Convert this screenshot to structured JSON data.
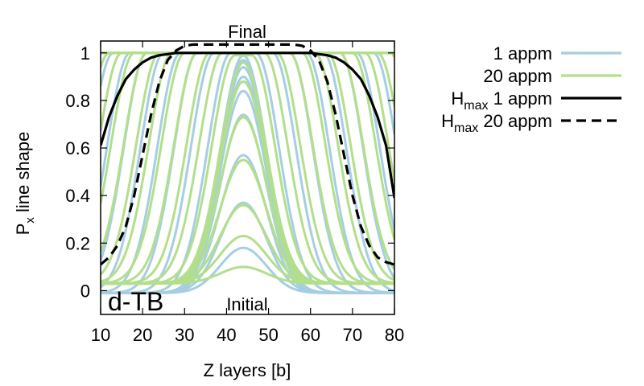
{
  "chart_data": {
    "type": "line",
    "xlabel": "Z layers [b]",
    "ylabel_main": "P",
    "ylabel_sub": "x",
    "ylabel_rest": " line shape",
    "xlim": [
      10,
      80
    ],
    "ylim": [
      -0.1,
      1.05
    ],
    "xticks": [
      10,
      20,
      30,
      40,
      50,
      60,
      70,
      80
    ],
    "yticks": [
      0,
      0.2,
      0.4,
      0.6,
      0.8,
      1
    ],
    "grid": false,
    "legend_position": "outside-right",
    "annotations": {
      "top": "Final",
      "bottom": "Initial",
      "corner": "d-TB"
    },
    "center": 44,
    "legend": [
      {
        "key": "blue",
        "text": "1 appm",
        "sub": "",
        "color": "#a6cee3",
        "dash": ""
      },
      {
        "key": "green",
        "text": "20 appm",
        "sub": "",
        "color": "#b2df8a",
        "dash": ""
      },
      {
        "key": "hmax1",
        "text": " 1 appm",
        "main": "H",
        "sub": "max",
        "color": "#000000",
        "dash": ""
      },
      {
        "key": "hmax20",
        "text": " 20 appm",
        "main": "H",
        "sub": "max",
        "color": "#000000",
        "dash": "12,7"
      }
    ],
    "series": [
      {
        "name": "1 appm",
        "color": "#a6cee3",
        "baseline": -0.01,
        "profiles": [
          {
            "amp": 0.18,
            "halfwidth": 0
          },
          {
            "amp": 0.37,
            "halfwidth": 0
          },
          {
            "amp": 0.57,
            "halfwidth": 0
          },
          {
            "amp": 0.74,
            "halfwidth": 0
          },
          {
            "amp": 0.84,
            "halfwidth": 0
          },
          {
            "amp": 0.9,
            "halfwidth": 0
          },
          {
            "amp": 0.94,
            "halfwidth": 0
          },
          {
            "amp": 0.97,
            "halfwidth": 0
          },
          {
            "amp": 0.99,
            "halfwidth": 0
          },
          {
            "amp": 1.0,
            "halfwidth": 3
          },
          {
            "amp": 1.0,
            "halfwidth": 7
          },
          {
            "amp": 1.0,
            "halfwidth": 11
          },
          {
            "amp": 1.0,
            "halfwidth": 15
          },
          {
            "amp": 1.0,
            "halfwidth": 19
          },
          {
            "amp": 1.0,
            "halfwidth": 23
          },
          {
            "amp": 1.0,
            "halfwidth": 27
          },
          {
            "amp": 1.0,
            "halfwidth": 31
          },
          {
            "amp": 1.0,
            "halfwidth": 35
          },
          {
            "amp": 1.0,
            "halfwidth": 39
          },
          {
            "amp": 1.0,
            "halfwidth": 44
          },
          {
            "amp": 1.0,
            "halfwidth": 50
          }
        ]
      },
      {
        "name": "20 appm",
        "color": "#b2df8a",
        "baseline": 0.03,
        "profiles": [
          {
            "amp": 0.1,
            "halfwidth": 0
          },
          {
            "amp": 0.23,
            "halfwidth": 0
          },
          {
            "amp": 0.36,
            "halfwidth": 0
          },
          {
            "amp": 0.55,
            "halfwidth": 0
          },
          {
            "amp": 0.73,
            "halfwidth": 0
          },
          {
            "amp": 0.88,
            "halfwidth": 0
          },
          {
            "amp": 0.96,
            "halfwidth": 0
          },
          {
            "amp": 0.99,
            "halfwidth": 2
          },
          {
            "amp": 1.0,
            "halfwidth": 5
          },
          {
            "amp": 1.0,
            "halfwidth": 8
          },
          {
            "amp": 1.0,
            "halfwidth": 11
          },
          {
            "amp": 1.0,
            "halfwidth": 14
          },
          {
            "amp": 1.0,
            "halfwidth": 17
          },
          {
            "amp": 1.0,
            "halfwidth": 20
          },
          {
            "amp": 1.0,
            "halfwidth": 23
          },
          {
            "amp": 1.0,
            "halfwidth": 26
          },
          {
            "amp": 1.0,
            "halfwidth": 29
          },
          {
            "amp": 1.0,
            "halfwidth": 32
          },
          {
            "amp": 1.0,
            "halfwidth": 35
          },
          {
            "amp": 1.0,
            "halfwidth": 38
          },
          {
            "amp": 1.0,
            "halfwidth": 41
          },
          {
            "amp": 1.0,
            "halfwidth": 44
          },
          {
            "amp": 1.0,
            "halfwidth": 48
          },
          {
            "amp": 1.0,
            "halfwidth": 52
          },
          {
            "amp": 1.0,
            "halfwidth": 56
          },
          {
            "amp": 1.0,
            "halfwidth": 62
          }
        ]
      },
      {
        "name": "Hmax 1 appm",
        "color": "#000000",
        "x": [
          10,
          12,
          14,
          16,
          18,
          20,
          22,
          24,
          26,
          28,
          30,
          35,
          40,
          44,
          48,
          53,
          58,
          60,
          62,
          64,
          66,
          68,
          70,
          72,
          74,
          76,
          78,
          80
        ],
        "y": [
          0.61,
          0.73,
          0.82,
          0.89,
          0.93,
          0.96,
          0.98,
          0.99,
          0.995,
          1.0,
          1.0,
          1.0,
          1.0,
          1.0,
          1.0,
          1.0,
          1.0,
          1.0,
          0.995,
          0.99,
          0.98,
          0.96,
          0.93,
          0.89,
          0.82,
          0.73,
          0.61,
          0.39
        ]
      },
      {
        "name": "Hmax 20 appm",
        "color": "#000000",
        "x": [
          10,
          12,
          14,
          16,
          18,
          20,
          22,
          24,
          26,
          28,
          30,
          32,
          35,
          40,
          44,
          48,
          53,
          56,
          58,
          60,
          62,
          64,
          66,
          68,
          70,
          72,
          74,
          76,
          78,
          80
        ],
        "y": [
          0.11,
          0.14,
          0.19,
          0.27,
          0.4,
          0.57,
          0.74,
          0.88,
          0.97,
          1.01,
          1.03,
          1.035,
          1.035,
          1.035,
          1.035,
          1.035,
          1.035,
          1.035,
          1.03,
          1.01,
          0.97,
          0.88,
          0.74,
          0.57,
          0.4,
          0.27,
          0.19,
          0.14,
          0.12,
          0.11
        ]
      }
    ]
  }
}
